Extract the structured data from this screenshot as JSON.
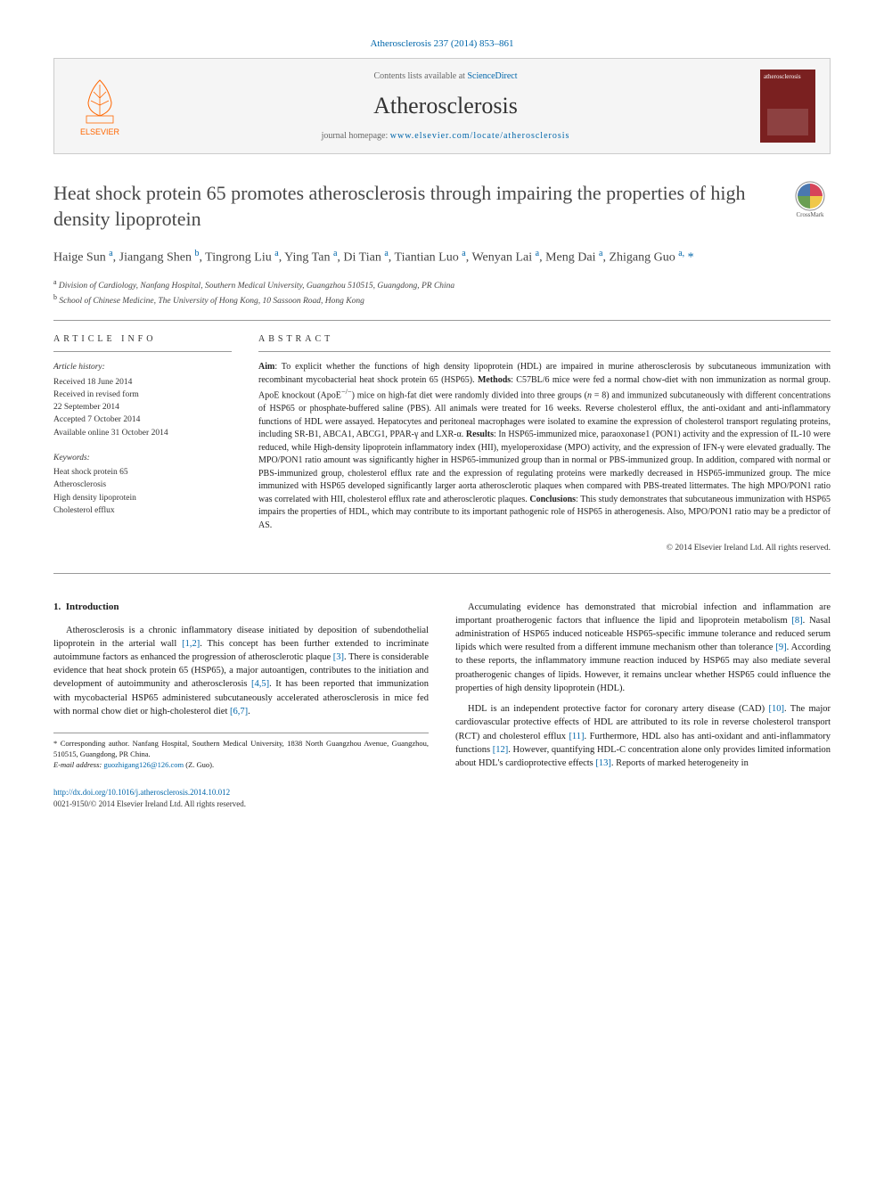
{
  "citation": "Atherosclerosis 237 (2014) 853–861",
  "header": {
    "contents_prefix": "Contents lists available at ",
    "contents_link": "ScienceDirect",
    "journal_title": "Atherosclerosis",
    "homepage_prefix": "journal homepage: ",
    "homepage_link": "www.elsevier.com/locate/atherosclerosis",
    "elsevier_brand": "ELSEVIER",
    "cover_text": "atherosclerosis"
  },
  "crossmark_label": "CrossMark",
  "title": "Heat shock protein 65 promotes atherosclerosis through impairing the properties of high density lipoprotein",
  "authors_html": "Haige Sun <sup>a</sup>, Jiangang Shen <sup>b</sup>, Tingrong Liu <sup>a</sup>, Ying Tan <sup>a</sup>, Di Tian <sup>a</sup>, Tiantian Luo <sup>a</sup>, Wenyan Lai <sup>a</sup>, Meng Dai <sup>a</sup>, Zhigang Guo <sup>a,</sup> <span class='corr'>*</span>",
  "affiliations": [
    {
      "sup": "a",
      "text": "Division of Cardiology, Nanfang Hospital, Southern Medical University, Guangzhou 510515, Guangdong, PR China"
    },
    {
      "sup": "b",
      "text": "School of Chinese Medicine, The University of Hong Kong, 10 Sassoon Road, Hong Kong"
    }
  ],
  "info": {
    "heading": "ARTICLE INFO",
    "history_label": "Article history:",
    "history": [
      "Received 18 June 2014",
      "Received in revised form",
      "22 September 2014",
      "Accepted 7 October 2014",
      "Available online 31 October 2014"
    ],
    "keywords_label": "Keywords:",
    "keywords": [
      "Heat shock protein 65",
      "Atherosclerosis",
      "High density lipoprotein",
      "Cholesterol efflux"
    ]
  },
  "abstract": {
    "heading": "ABSTRACT",
    "text": "<b>Aim</b>: To explicit whether the functions of high density lipoprotein (HDL) are impaired in murine atherosclerosis by subcutaneous immunization with recombinant mycobacterial heat shock protein 65 (HSP65). <b>Methods</b>: C57BL/6 mice were fed a normal chow-diet with non immunization as normal group. ApoE knockout (ApoE<sup>−/−</sup>) mice on high-fat diet were randomly divided into three groups (<i>n</i> = 8) and immunized subcutaneously with different concentrations of HSP65 or phosphate-buffered saline (PBS). All animals were treated for 16 weeks. Reverse cholesterol efflux, the anti-oxidant and anti-inflammatory functions of HDL were assayed. Hepatocytes and peritoneal macrophages were isolated to examine the expression of cholesterol transport regulating proteins, including SR-B1, ABCA1, ABCG1, PPAR-γ and LXR-α. <b>Results</b>: In HSP65-immunized mice, paraoxonase1 (PON1) activity and the expression of IL-10 were reduced, while High-density lipoprotein inflammatory index (HII), myeloperoxidase (MPO) activity, and the expression of IFN-γ were elevated gradually. The MPO/PON1 ratio amount was significantly higher in HSP65-immunized group than in normal or PBS-immunized group. In addition, compared with normal or PBS-immunized group, cholesterol efflux rate and the expression of regulating proteins were markedly decreased in HSP65-immunized group. The mice immunized with HSP65 developed significantly larger aorta atherosclerotic plaques when compared with PBS-treated littermates. The high MPO/PON1 ratio was correlated with HII, cholesterol efflux rate and atherosclerotic plaques. <b>Conclusions</b>: This study demonstrates that subcutaneous immunization with HSP65 impairs the properties of HDL, which may contribute to its important pathogenic role of HSP65 in atherogenesis. Also, MPO/PON1 ratio may be a predictor of AS.",
    "copyright": "© 2014 Elsevier Ireland Ltd. All rights reserved."
  },
  "body": {
    "section_number": "1.",
    "section_title": "Introduction",
    "col1_p1": "Atherosclerosis is a chronic inflammatory disease initiated by deposition of subendothelial lipoprotein in the arterial wall <a href='#'>[1,2]</a>. This concept has been further extended to incriminate autoimmune factors as enhanced the progression of atherosclerotic plaque <a href='#'>[3]</a>. There is considerable evidence that heat shock protein 65 (HSP65), a major autoantigen, contributes to the initiation and development of autoimmunity and atherosclerosis <a href='#'>[4,5]</a>. It has been reported that immunization with mycobacterial HSP65 administered subcutaneously accelerated atherosclerosis in mice fed with normal chow diet or high-cholesterol diet <a href='#'>[6,7]</a>.",
    "col2_p1": "Accumulating evidence has demonstrated that microbial infection and inflammation are important proatherogenic factors that influence the lipid and lipoprotein metabolism <a href='#'>[8]</a>. Nasal administration of HSP65 induced noticeable HSP65-specific immune tolerance and reduced serum lipids which were resulted from a different immune mechanism other than tolerance <a href='#'>[9]</a>. According to these reports, the inflammatory immune reaction induced by HSP65 may also mediate several proatherogenic changes of lipids. However, it remains unclear whether HSP65 could influence the properties of high density lipoprotein (HDL).",
    "col2_p2": "HDL is an independent protective factor for coronary artery disease (CAD) <a href='#'>[10]</a>. The major cardiovascular protective effects of HDL are attributed to its role in reverse cholesterol transport (RCT) and cholesterol efflux <a href='#'>[11]</a>. Furthermore, HDL also has anti-oxidant and anti-inflammatory functions <a href='#'>[12]</a>. However, quantifying HDL-C concentration alone only provides limited information about HDL's cardioprotective effects <a href='#'>[13]</a>. Reports of marked heterogeneity in"
  },
  "footnote": {
    "text": "* Corresponding author. Nanfang Hospital, Southern Medical University, 1838 North Guangzhou Avenue, Guangzhou, 510515, Guangdong, PR China.",
    "email_label": "E-mail address: ",
    "email": "guozhigang126@126.com",
    "email_for": " (Z. Guo)."
  },
  "doi": {
    "url": "http://dx.doi.org/10.1016/j.atherosclerosis.2014.10.012",
    "rights": "0021-9150/© 2014 Elsevier Ireland Ltd. All rights reserved."
  },
  "colors": {
    "link": "#0066aa",
    "elsevier_orange": "#ff6600",
    "rule": "#999999",
    "header_bg": "#f5f5f5",
    "cover_bg": "#7a2020"
  }
}
